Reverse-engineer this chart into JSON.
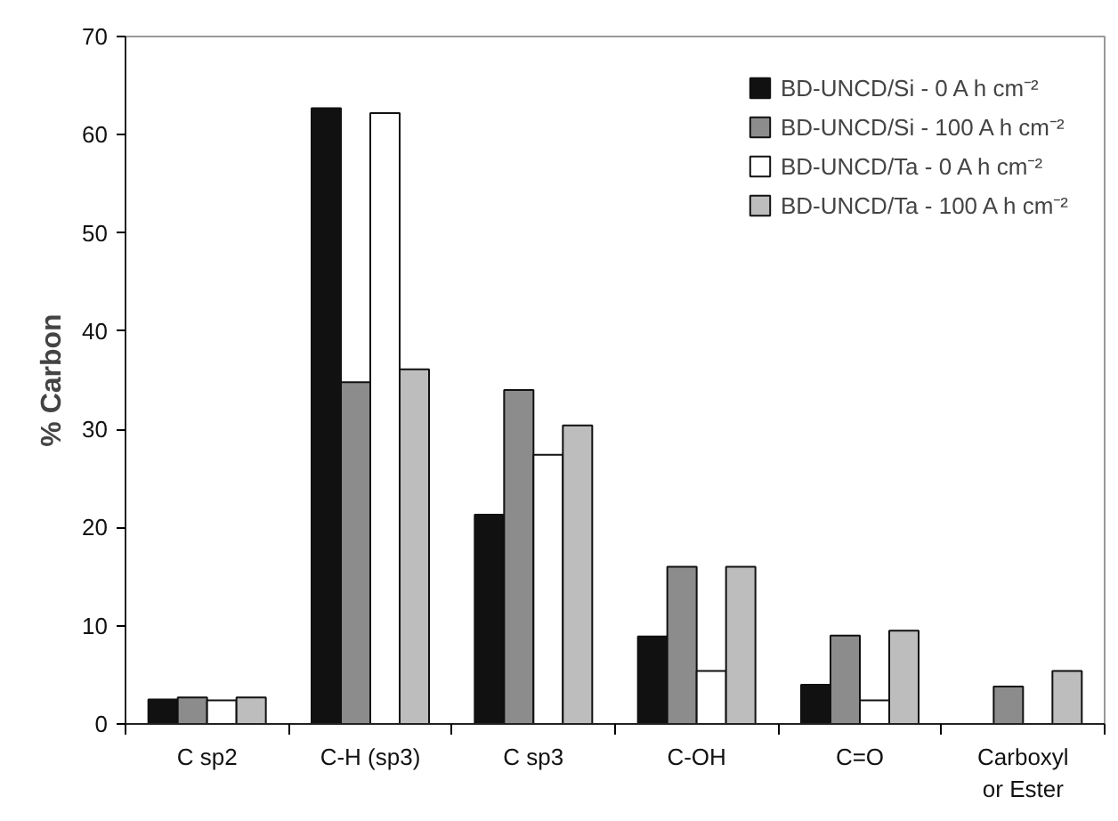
{
  "chart_data": {
    "type": "bar",
    "ylabel": "% Carbon",
    "categories": [
      "C sp2",
      "C-H (sp3)",
      "C sp3",
      "C-OH",
      "C=O",
      "Carboxyl or Ester"
    ],
    "series": [
      {
        "name": "BD-UNCD/Si - 0 A h cm⁻²",
        "color": "#111111",
        "values": [
          2.5,
          62.7,
          21.3,
          8.9,
          4.0,
          null
        ]
      },
      {
        "name": "BD-UNCD/Si - 100 A h cm⁻²",
        "color": "#8c8c8c",
        "values": [
          2.7,
          34.8,
          34.0,
          16.0,
          9.0,
          3.8
        ]
      },
      {
        "name": "BD-UNCD/Ta - 0 A h cm⁻²",
        "color": "#ffffff",
        "values": [
          2.4,
          62.2,
          27.4,
          5.4,
          2.4,
          null
        ]
      },
      {
        "name": "BD-UNCD/Ta - 100 A h cm⁻²",
        "color": "#bdbdbd",
        "values": [
          2.7,
          36.1,
          30.4,
          16.0,
          9.5,
          5.4
        ]
      }
    ],
    "ylim": [
      0,
      70
    ],
    "yticks": [
      0,
      10,
      20,
      30,
      40,
      50,
      60,
      70
    ],
    "grid": false,
    "legend": "top right"
  }
}
